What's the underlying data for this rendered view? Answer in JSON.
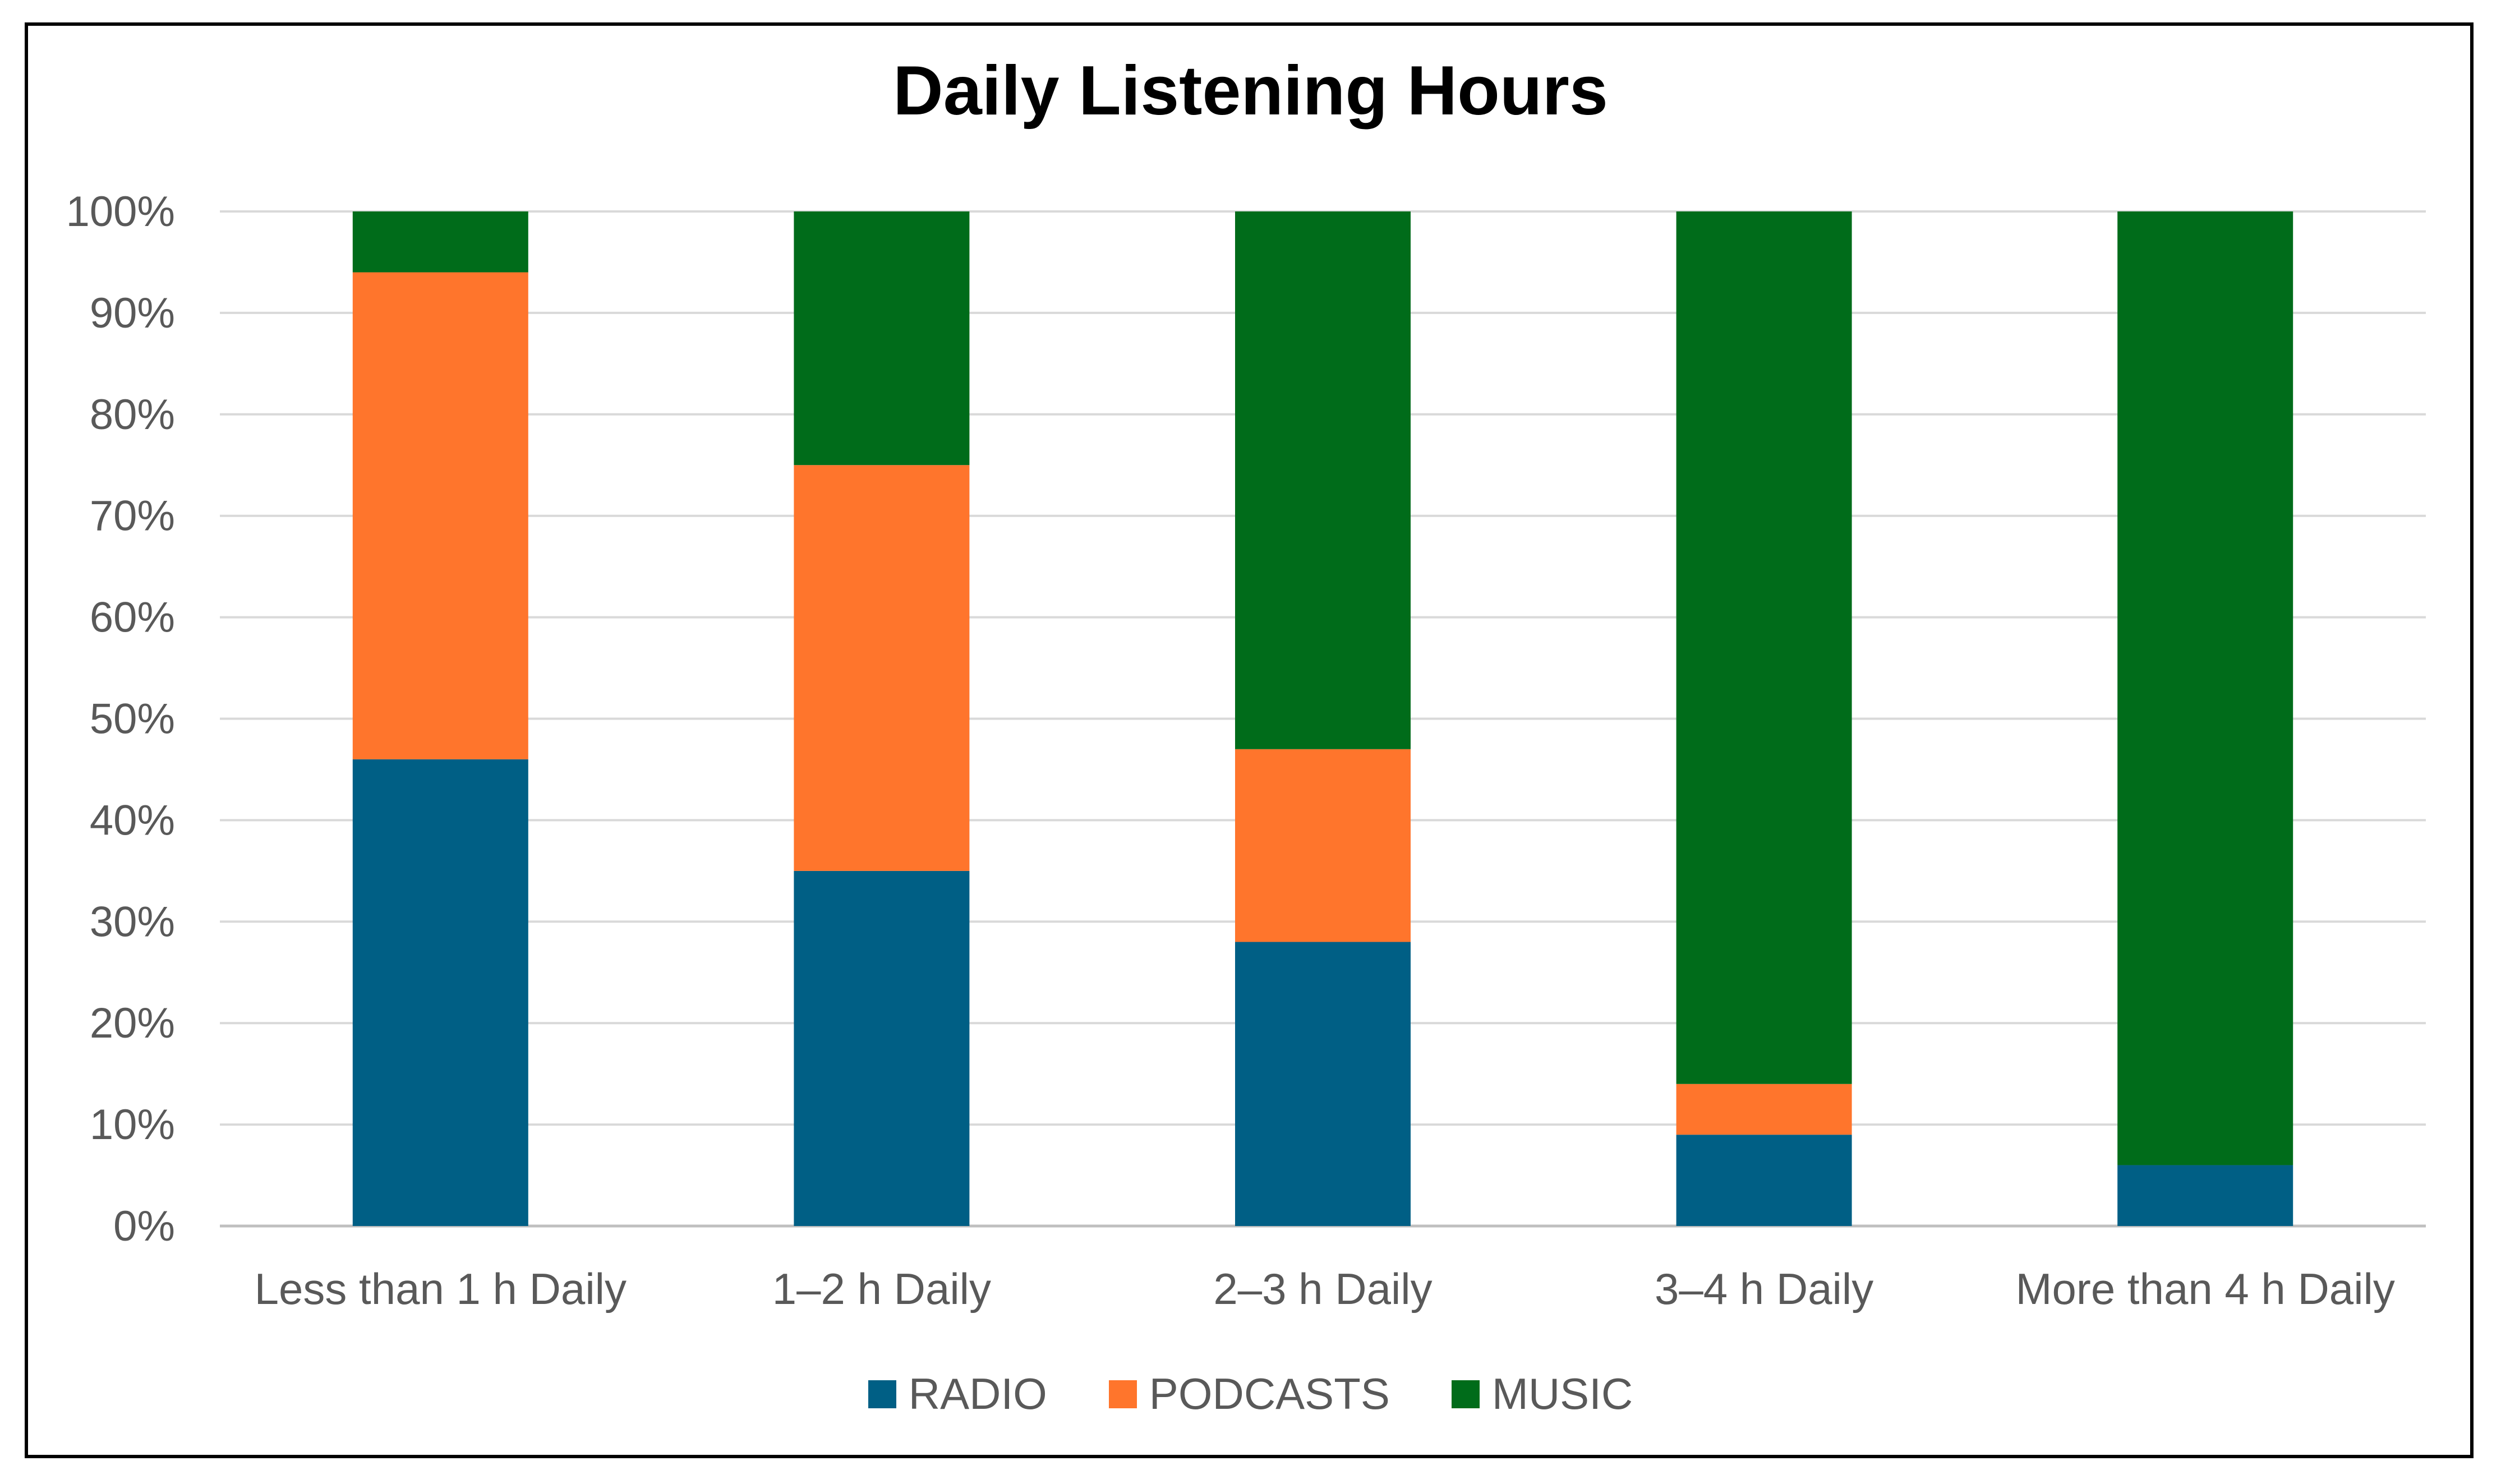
{
  "chart_data": {
    "type": "bar",
    "stacked": true,
    "title": "Daily Listening Hours",
    "categories": [
      "Less than 1 h Daily",
      "1–2 h Daily",
      "2–3 h Daily",
      "3–4 h Daily",
      "More than 4 h Daily"
    ],
    "series": [
      {
        "name": "RADIO",
        "color": "#005f85",
        "values": [
          46,
          35,
          28,
          9,
          6
        ]
      },
      {
        "name": "PODCASTS",
        "color": "#ff752c",
        "values": [
          48,
          40,
          19,
          5,
          0
        ]
      },
      {
        "name": "MUSIC",
        "color": "#006c1a",
        "values": [
          6,
          25,
          53,
          86,
          94
        ]
      }
    ],
    "ylim": [
      0,
      100
    ],
    "yticks": [
      "0%",
      "10%",
      "20%",
      "30%",
      "40%",
      "50%",
      "60%",
      "70%",
      "80%",
      "90%",
      "100%"
    ],
    "grid": true,
    "legend": "bottom"
  }
}
